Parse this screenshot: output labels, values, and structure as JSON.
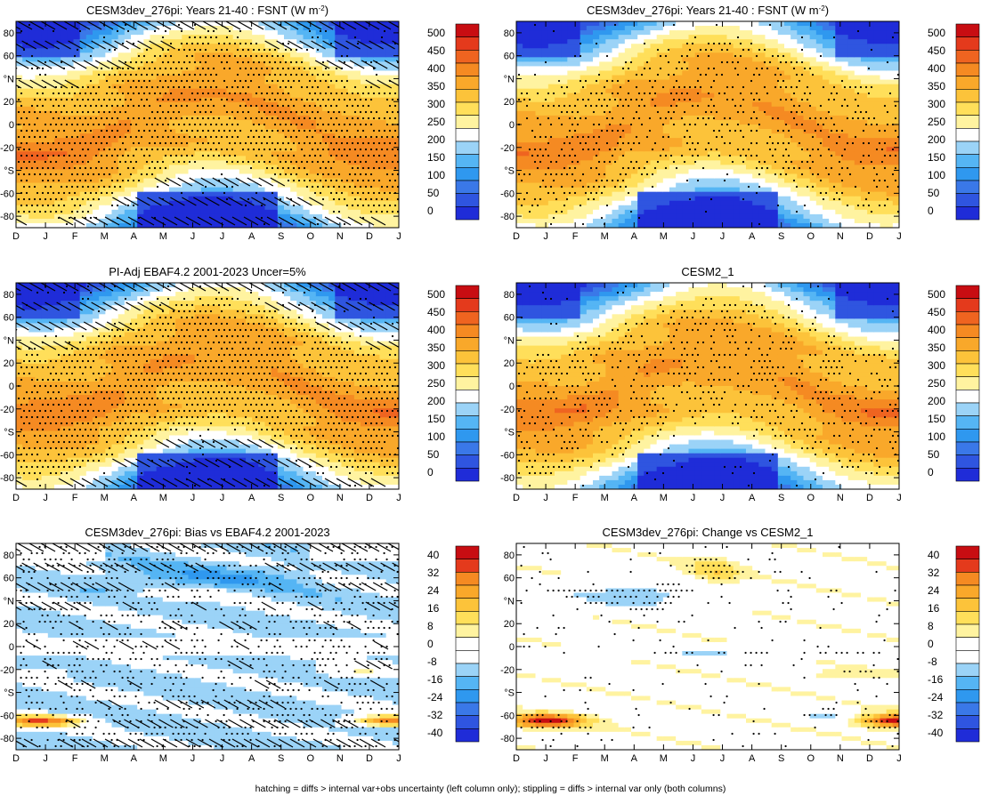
{
  "footnote": "hatching = diffs > internal var+obs uncertainty (left column only); stippling = diffs > internal var only (both columns)",
  "colorbars": {
    "absolute": {
      "levels": [
        "0",
        "50",
        "100",
        "150",
        "200",
        "250",
        "300",
        "350",
        "400",
        "450",
        "500"
      ],
      "colors": [
        "#1f2cd8",
        "#2f55e0",
        "#3a78e8",
        "#2f98ef",
        "#55b5f4",
        "#9bd3f7",
        "#ffffff",
        "#fff3a0",
        "#ffdf5a",
        "#fcc33a",
        "#f9a82a",
        "#f58a22",
        "#ef6420",
        "#e43a1c",
        "#c80d12"
      ]
    },
    "difference": {
      "levels": [
        "-40",
        "-32",
        "-24",
        "-16",
        "-8",
        "0",
        "8",
        "16",
        "24",
        "32",
        "40"
      ],
      "colors": [
        "#1f2cd8",
        "#2f55e0",
        "#3a78e8",
        "#2f98ef",
        "#55b5f4",
        "#9bd3f7",
        "#ffffff",
        "#ffffff",
        "#fff3a0",
        "#ffdf5a",
        "#fcc33a",
        "#f9a82a",
        "#f58a22",
        "#e43a1c",
        "#c80d12"
      ]
    }
  },
  "axes": {
    "x_ticks": [
      "D",
      "J",
      "F",
      "M",
      "A",
      "M",
      "J",
      "J",
      "A",
      "S",
      "O",
      "N",
      "D",
      "J"
    ],
    "y_ticks": [
      "80",
      "60",
      "°N",
      "20",
      "0",
      "-20",
      "°S",
      "-60",
      "-80"
    ]
  },
  "chart_data": [
    {
      "type": "heatmap",
      "title": "CESM3dev_276pi: Years 21-40 : FSNT (W m<sup>-2</sup>)",
      "title_main": "CESM3dev_276pi: Years 21-40 : FSNT (W m",
      "title_sup": "-2",
      "title_end": ")",
      "x": [
        "D",
        "J",
        "F",
        "M",
        "A",
        "M",
        "J",
        "J",
        "A",
        "S",
        "O",
        "N",
        "D",
        "J"
      ],
      "ylim": [
        -90,
        90
      ],
      "zlim": [
        0,
        525
      ],
      "field": "absolute",
      "hatching": true,
      "stippling": true
    },
    {
      "type": "heatmap",
      "title": "CESM3dev_276pi: Years 21-40 : FSNT (W m-2)",
      "title_main": "CESM3dev_276pi: Years 21-40 : FSNT (W m",
      "title_sup": "-2",
      "title_end": ")",
      "x": [
        "D",
        "J",
        "F",
        "M",
        "A",
        "M",
        "J",
        "J",
        "A",
        "S",
        "O",
        "N",
        "D",
        "J"
      ],
      "ylim": [
        -90,
        90
      ],
      "zlim": [
        0,
        525
      ],
      "field": "absolute",
      "hatching": false,
      "stippling": true
    },
    {
      "type": "heatmap",
      "title": "PI-Adj EBAF4.2 2001-2023 Uncer=5%",
      "title_main": "PI-Adj EBAF4.2 2001-2023 Uncer=5%",
      "title_sup": "",
      "title_end": "",
      "x": [
        "D",
        "J",
        "F",
        "M",
        "A",
        "M",
        "J",
        "J",
        "A",
        "S",
        "O",
        "N",
        "D",
        "J"
      ],
      "ylim": [
        -90,
        90
      ],
      "zlim": [
        0,
        525
      ],
      "field": "absolute",
      "hatching": true,
      "stippling": true
    },
    {
      "type": "heatmap",
      "title": "CESM2_1",
      "title_main": "CESM2_1",
      "title_sup": "",
      "title_end": "",
      "x": [
        "D",
        "J",
        "F",
        "M",
        "A",
        "M",
        "J",
        "J",
        "A",
        "S",
        "O",
        "N",
        "D",
        "J"
      ],
      "ylim": [
        -90,
        90
      ],
      "zlim": [
        0,
        525
      ],
      "field": "absolute",
      "hatching": false,
      "stippling": true
    },
    {
      "type": "heatmap",
      "title": "CESM3dev_276pi: Bias vs EBAF4.2 2001-2023",
      "title_main": "CESM3dev_276pi: Bias vs EBAF4.2 2001-2023",
      "title_sup": "",
      "title_end": "",
      "x": [
        "D",
        "J",
        "F",
        "M",
        "A",
        "M",
        "J",
        "J",
        "A",
        "S",
        "O",
        "N",
        "D",
        "J"
      ],
      "ylim": [
        -90,
        90
      ],
      "zlim": [
        -42,
        42
      ],
      "field": "bias",
      "hatching": true,
      "stippling": true
    },
    {
      "type": "heatmap",
      "title": "CESM3dev_276pi: Change vs CESM2_1",
      "title_main": "CESM3dev_276pi: Change vs CESM2_1",
      "title_sup": "",
      "title_end": "",
      "x": [
        "D",
        "J",
        "F",
        "M",
        "A",
        "M",
        "J",
        "J",
        "A",
        "S",
        "O",
        "N",
        "D",
        "J"
      ],
      "ylim": [
        -90,
        90
      ],
      "zlim": [
        -42,
        42
      ],
      "field": "change",
      "hatching": false,
      "stippling": true
    }
  ]
}
